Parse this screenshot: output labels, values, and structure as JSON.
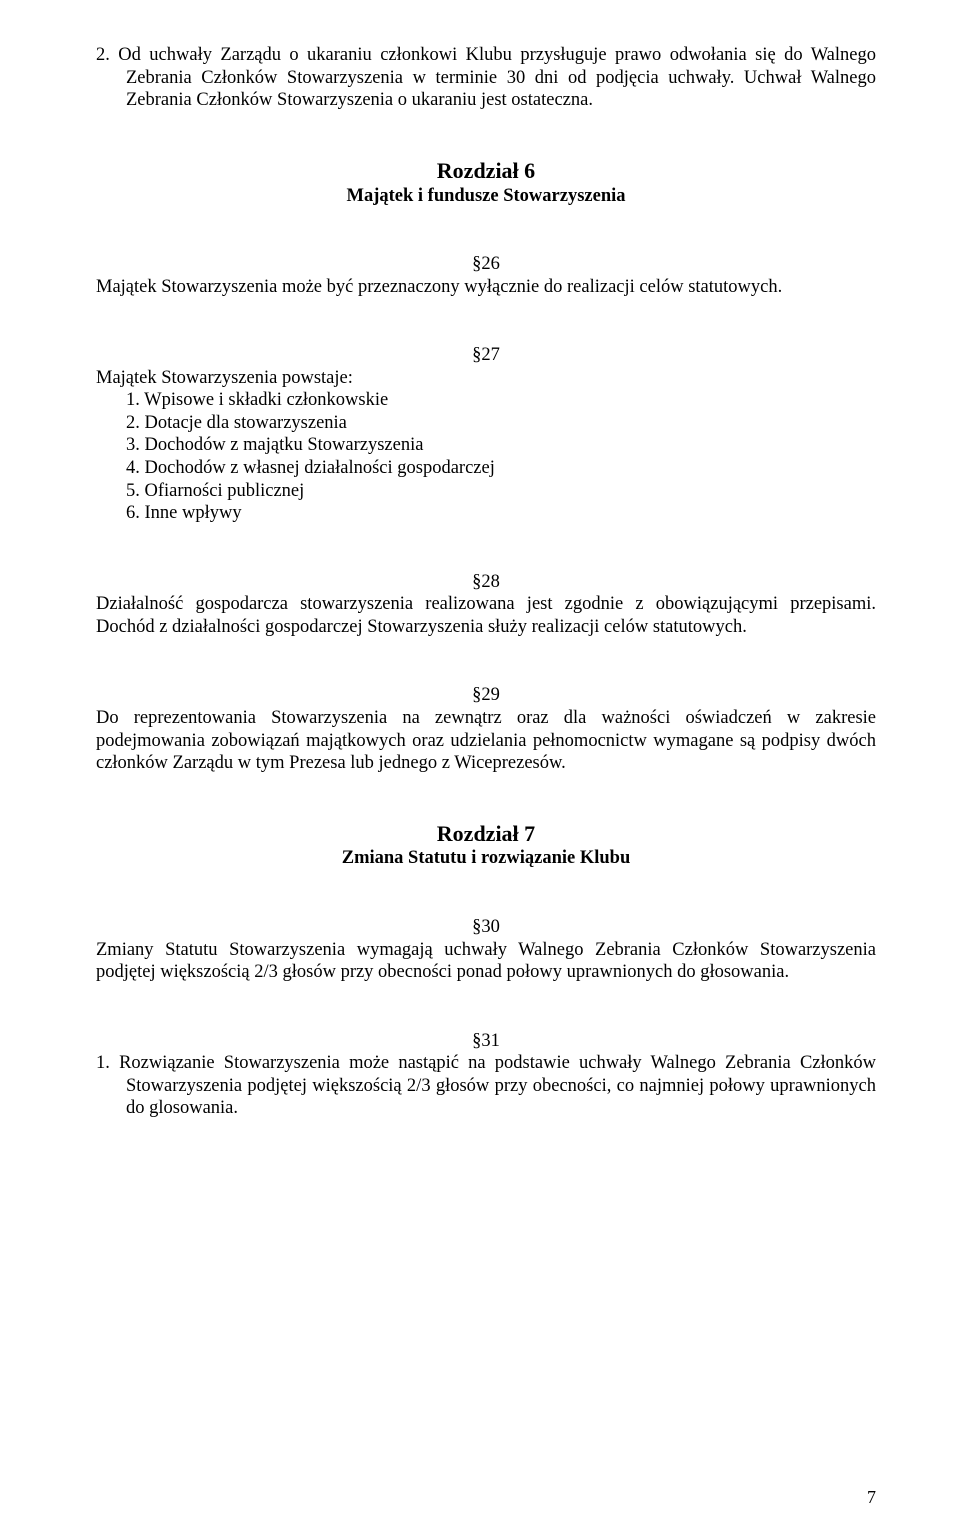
{
  "p2": {
    "text": "2.  Od uchwały Zarządu o ukaraniu członkowi Klubu przysługuje prawo odwołania się do Walnego Zebrania Członków Stowarzyszenia w terminie 30 dni od podjęcia uchwały. Uchwał Walnego Zebrania Członków Stowarzyszenia o ukaraniu jest ostateczna."
  },
  "ch6": {
    "title": "Rozdział 6",
    "subtitle": "Majątek i fundusze Stowarzyszenia"
  },
  "s26": {
    "num": "§26",
    "text": "Majątek Stowarzyszenia może być przeznaczony wyłącznie do realizacji celów statutowych."
  },
  "s27": {
    "num": "§27",
    "lead": "Majątek Stowarzyszenia powstaje:",
    "items": [
      "1.  Wpisowe i składki członkowskie",
      "2.  Dotacje dla stowarzyszenia",
      "3.  Dochodów z majątku Stowarzyszenia",
      "4.  Dochodów z własnej działalności gospodarczej",
      "5.  Ofiarności publicznej",
      "6.  Inne wpływy"
    ]
  },
  "s28": {
    "num": "§28",
    "text": "Działalność gospodarcza stowarzyszenia realizowana jest zgodnie z obowiązującymi przepisami. Dochód z działalności gospodarczej Stowarzyszenia służy realizacji celów statutowych."
  },
  "s29": {
    "num": "§29",
    "text": "Do reprezentowania Stowarzyszenia na zewnątrz oraz dla ważności oświadczeń w zakresie podejmowania zobowiązań majątkowych oraz udzielania pełnomocnictw wymagane są podpisy dwóch członków Zarządu w tym Prezesa lub jednego z Wiceprezesów."
  },
  "ch7": {
    "title": "Rozdział 7",
    "subtitle": "Zmiana Statutu i rozwiązanie Klubu"
  },
  "s30": {
    "num": "§30",
    "text": "Zmiany Statutu Stowarzyszenia wymagają uchwały Walnego Zebrania Członków Stowarzyszenia podjętej większością 2/3 głosów przy obecności ponad połowy uprawnionych do głosowania."
  },
  "s31": {
    "num": "§31",
    "text": "1.  Rozwiązanie Stowarzyszenia może nastąpić na podstawie uchwały Walnego Zebrania Członków Stowarzyszenia podjętej większością 2/3 głosów przy obecności, co najmniej połowy uprawnionych do glosowania."
  },
  "pageNumber": "7"
}
